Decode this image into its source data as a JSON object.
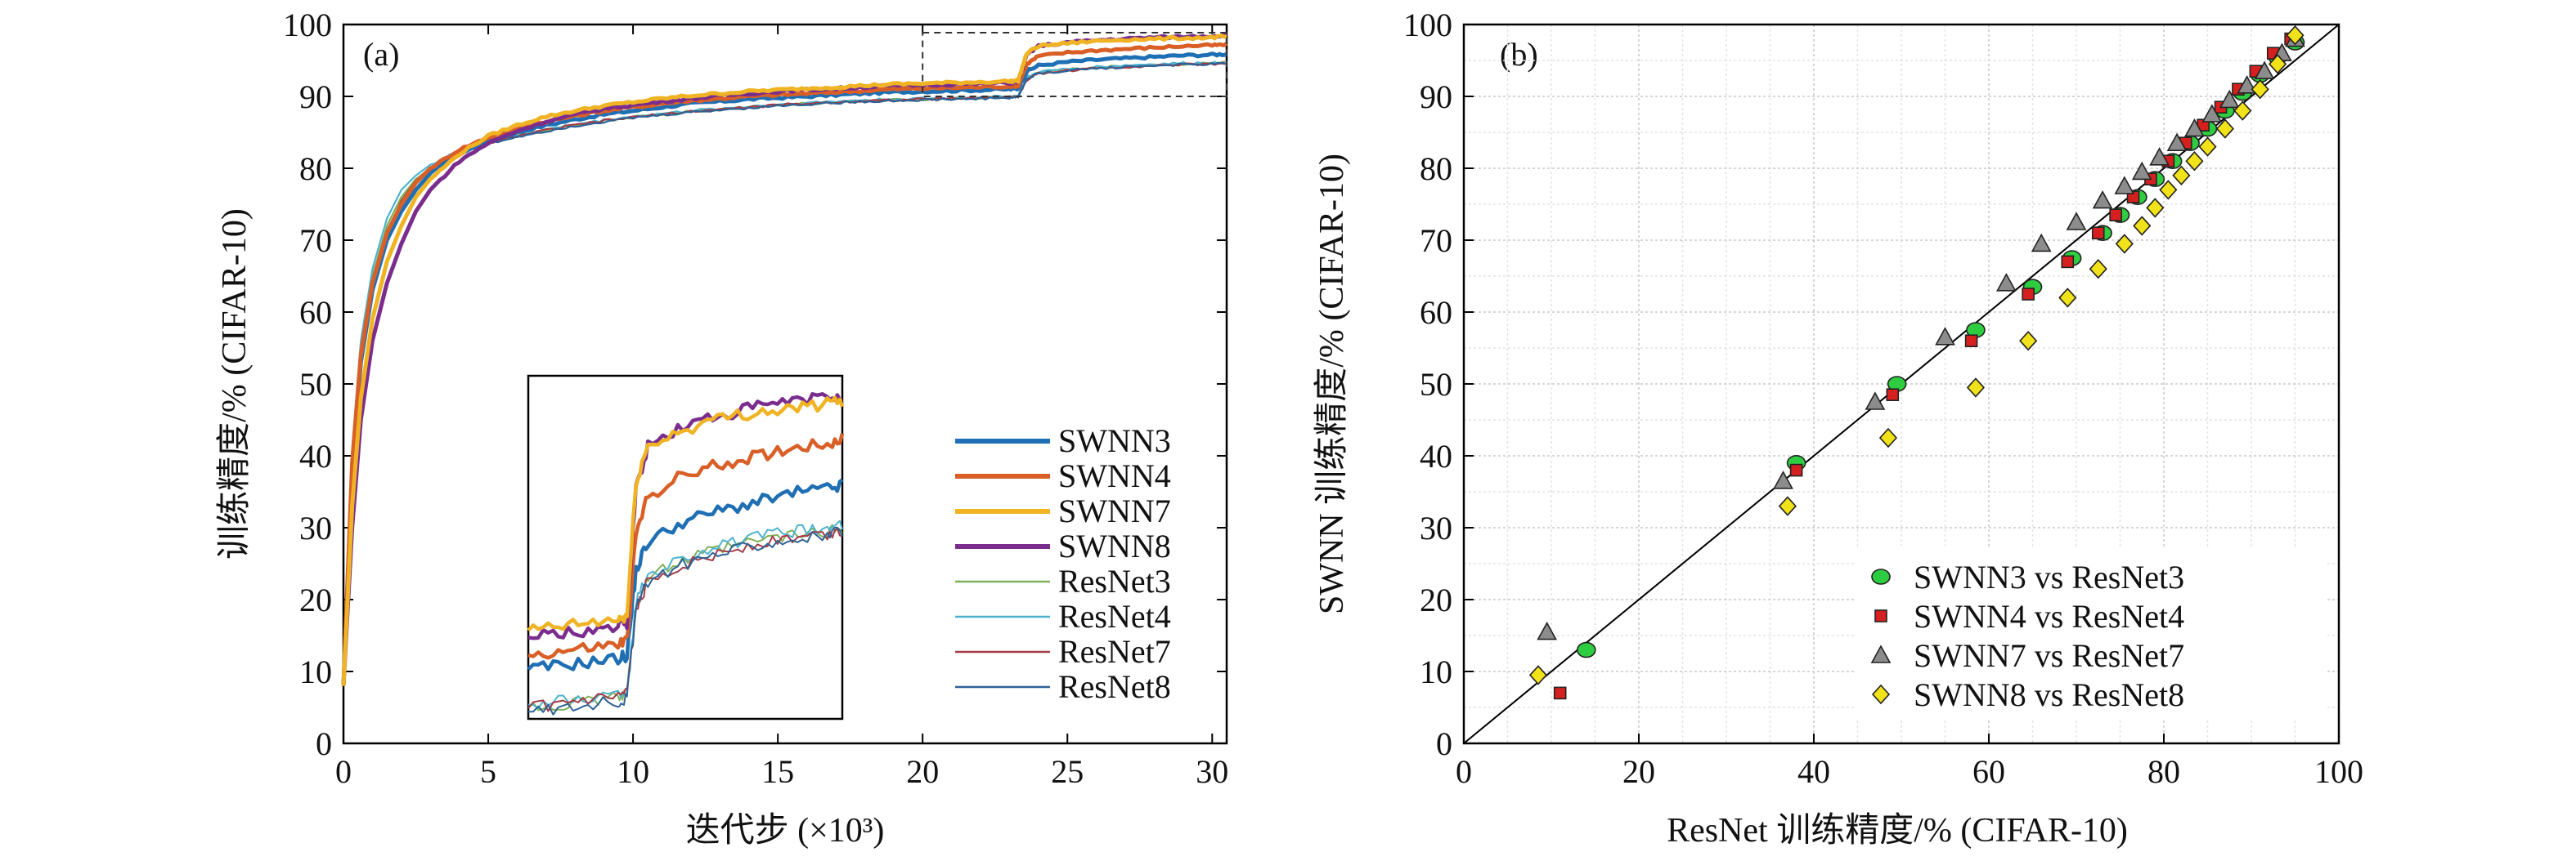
{
  "chart_data": [
    {
      "panel_label": "(a)",
      "type": "line",
      "xlabel": "迭代步 (×10³)",
      "ylabel": "训练精度/% (CIFAR-10)",
      "xlim": [
        0,
        30.5
      ],
      "ylim": [
        0,
        100
      ],
      "xticks": [
        0,
        5,
        10,
        15,
        20,
        25,
        30
      ],
      "yticks": [
        0,
        10,
        20,
        30,
        40,
        50,
        60,
        70,
        80,
        90,
        100
      ],
      "legend_position": "lower-right",
      "zoom_box": {
        "x": [
          20,
          30.5
        ],
        "y": [
          90,
          100
        ]
      },
      "x": [
        0,
        0.3,
        0.6,
        1,
        1.5,
        2,
        2.5,
        3,
        4,
        5,
        6,
        7,
        8,
        9,
        10,
        11,
        12,
        13,
        14,
        15,
        16,
        17,
        18,
        19,
        20,
        21,
        22,
        23,
        23.3,
        23.6,
        24,
        25,
        26,
        27,
        28,
        29,
        30,
        30.5
      ],
      "series": [
        {
          "name": "SWNN3",
          "color": "#1f6fb4",
          "width": "thick",
          "values": [
            8,
            38,
            53,
            63,
            70,
            74,
            77,
            79.3,
            82,
            83.8,
            85,
            86,
            86.8,
            87.5,
            88,
            88.5,
            89,
            89.3,
            89.6,
            89.8,
            90,
            90.2,
            90.4,
            90.6,
            90.7,
            90.8,
            90.9,
            91,
            91.1,
            93.5,
            94.3,
            94.8,
            95.1,
            95.3,
            95.5,
            95.7,
            95.8,
            95.9
          ]
        },
        {
          "name": "SWNN4",
          "color": "#d95f27",
          "width": "thick",
          "values": [
            8,
            39,
            54,
            64,
            71,
            75,
            78,
            80,
            82.6,
            84.3,
            85.5,
            86.5,
            87.3,
            88,
            88.5,
            89,
            89.4,
            89.7,
            90,
            90.2,
            90.4,
            90.6,
            90.8,
            91,
            91.1,
            91.2,
            91.3,
            91.4,
            91.5,
            94.5,
            95.6,
            96.1,
            96.4,
            96.6,
            96.8,
            97,
            97.1,
            97.2
          ]
        },
        {
          "name": "SWNN7",
          "color": "#f0b323",
          "width": "thick",
          "values": [
            8,
            33,
            48,
            59,
            67,
            72,
            76,
            78.5,
            82,
            84.5,
            86,
            87.2,
            88,
            88.7,
            89.2,
            89.7,
            90.1,
            90.4,
            90.7,
            90.9,
            91.1,
            91.3,
            91.5,
            91.7,
            91.8,
            91.9,
            92,
            92.1,
            92.2,
            96,
            97,
            97.4,
            97.7,
            97.9,
            98,
            98.1,
            98.2,
            98.3
          ]
        },
        {
          "name": "SWNN8",
          "color": "#7b2d8e",
          "width": "thick",
          "values": [
            8,
            30,
            45,
            56,
            64,
            69.5,
            74,
            77,
            81,
            83.5,
            85.2,
            86.5,
            87.5,
            88.3,
            88.8,
            89.3,
            89.7,
            90.1,
            90.4,
            90.7,
            90.9,
            91.1,
            91.3,
            91.5,
            91.6,
            91.7,
            91.8,
            91.9,
            92,
            95.8,
            97,
            97.5,
            97.8,
            98,
            98.2,
            98.3,
            98.4,
            98.5
          ]
        },
        {
          "name": "ResNet3",
          "color": "#7fb05a",
          "width": "thin",
          "values": [
            8,
            40,
            55,
            65,
            72,
            76,
            78.5,
            80,
            82.3,
            83.6,
            84.5,
            85.3,
            86,
            86.6,
            87.1,
            87.5,
            87.9,
            88.2,
            88.5,
            88.8,
            89,
            89.2,
            89.4,
            89.5,
            89.6,
            89.7,
            89.8,
            89.9,
            90,
            92.5,
            93.3,
            93.7,
            94,
            94.2,
            94.4,
            94.5,
            94.6,
            94.7
          ]
        },
        {
          "name": "ResNet4",
          "color": "#4db3cf",
          "width": "thin",
          "values": [
            8,
            41,
            56,
            66,
            73,
            77,
            79,
            80.5,
            82.5,
            83.7,
            84.6,
            85.4,
            86.1,
            86.7,
            87.2,
            87.6,
            88,
            88.3,
            88.6,
            88.9,
            89.1,
            89.3,
            89.5,
            89.6,
            89.7,
            89.8,
            89.9,
            90,
            90.1,
            92.6,
            93.4,
            93.8,
            94.1,
            94.3,
            94.5,
            94.6,
            94.7,
            94.8
          ]
        },
        {
          "name": "ResNet7",
          "color": "#a33a45",
          "width": "thin",
          "values": [
            8,
            39,
            54,
            64,
            71,
            75.5,
            78.3,
            80,
            82.2,
            83.5,
            84.5,
            85.3,
            86,
            86.6,
            87.1,
            87.5,
            87.9,
            88.2,
            88.5,
            88.8,
            89,
            89.2,
            89.4,
            89.5,
            89.6,
            89.7,
            89.8,
            89.9,
            90,
            92.3,
            93.2,
            93.6,
            93.9,
            94.1,
            94.3,
            94.4,
            94.5,
            94.6
          ]
        },
        {
          "name": "ResNet8",
          "color": "#2e6296",
          "width": "thin",
          "values": [
            8,
            38,
            53,
            63,
            70.5,
            75,
            78,
            79.8,
            82,
            83.4,
            84.4,
            85.2,
            85.9,
            86.5,
            87,
            87.4,
            87.8,
            88.1,
            88.4,
            88.7,
            88.9,
            89.1,
            89.3,
            89.4,
            89.5,
            89.6,
            89.7,
            89.8,
            89.9,
            92.4,
            93.2,
            93.6,
            93.9,
            94.1,
            94.3,
            94.4,
            94.5,
            94.6
          ]
        }
      ]
    },
    {
      "panel_label": "(b)",
      "type": "scatter",
      "xlabel": "ResNet 训练精度/% (CIFAR-10)",
      "ylabel": "SWNN 训练精度/% (CIFAR-10)",
      "xlim": [
        0,
        100
      ],
      "ylim": [
        0,
        100
      ],
      "xticks": [
        0,
        20,
        40,
        60,
        80,
        100
      ],
      "yticks": [
        0,
        10,
        20,
        30,
        40,
        50,
        60,
        70,
        80,
        90,
        100
      ],
      "grid": true,
      "diagonal_line": true,
      "legend_position": "lower-right",
      "series": [
        {
          "name": "SWNN3 vs ResNet3",
          "marker": "circle",
          "color": "#2ecc40",
          "x": [
            14,
            38,
            49.5,
            58.5,
            65,
            69.5,
            73,
            75,
            77,
            79,
            81,
            83,
            85,
            87,
            89,
            91,
            93,
            95
          ],
          "y": [
            13,
            39,
            50,
            57.5,
            63.5,
            67.5,
            71,
            73.5,
            76,
            78.5,
            81,
            83.5,
            85.5,
            88,
            90.5,
            93,
            95.5,
            97.5
          ]
        },
        {
          "name": "SWNN4 vs ResNet4",
          "marker": "square",
          "color": "#d62020",
          "x": [
            11,
            38,
            49,
            58,
            64.5,
            69,
            72.5,
            74.5,
            76.5,
            78.5,
            80.5,
            82.5,
            84.5,
            86.5,
            88.5,
            90.5,
            92.5,
            94.5
          ],
          "y": [
            7,
            38,
            48.5,
            56,
            62.5,
            67,
            71,
            73.5,
            76,
            78.5,
            81,
            83.5,
            86,
            88.5,
            91,
            93.5,
            96,
            98
          ]
        },
        {
          "name": "SWNN7 vs ResNet7",
          "marker": "triangle",
          "color": "#8c8c8c",
          "x": [
            9.5,
            36.5,
            47,
            55,
            62,
            66,
            70,
            73,
            75.5,
            77.5,
            79.5,
            81.5,
            83.5,
            85.5,
            87.5,
            89.5,
            91.5,
            93.5,
            95
          ],
          "y": [
            15.5,
            36.5,
            47.5,
            56.5,
            64,
            69.5,
            72.5,
            75.5,
            77.5,
            79.5,
            81.5,
            83.5,
            85.5,
            87.5,
            89.5,
            91.5,
            93.5,
            96,
            98
          ]
        },
        {
          "name": "SWNN8 vs ResNet8",
          "marker": "diamond",
          "color": "#f2e21a",
          "x": [
            8.5,
            37,
            48.5,
            58.5,
            64.5,
            69,
            72.5,
            75.5,
            77.5,
            79,
            80.5,
            82,
            83.5,
            85,
            87,
            89,
            91,
            93,
            95
          ],
          "y": [
            9.5,
            33,
            42.5,
            49.5,
            56,
            62,
            66,
            69.5,
            72,
            74.5,
            77,
            79,
            81,
            83,
            85.5,
            88,
            91,
            94.5,
            98.5
          ]
        }
      ]
    }
  ]
}
